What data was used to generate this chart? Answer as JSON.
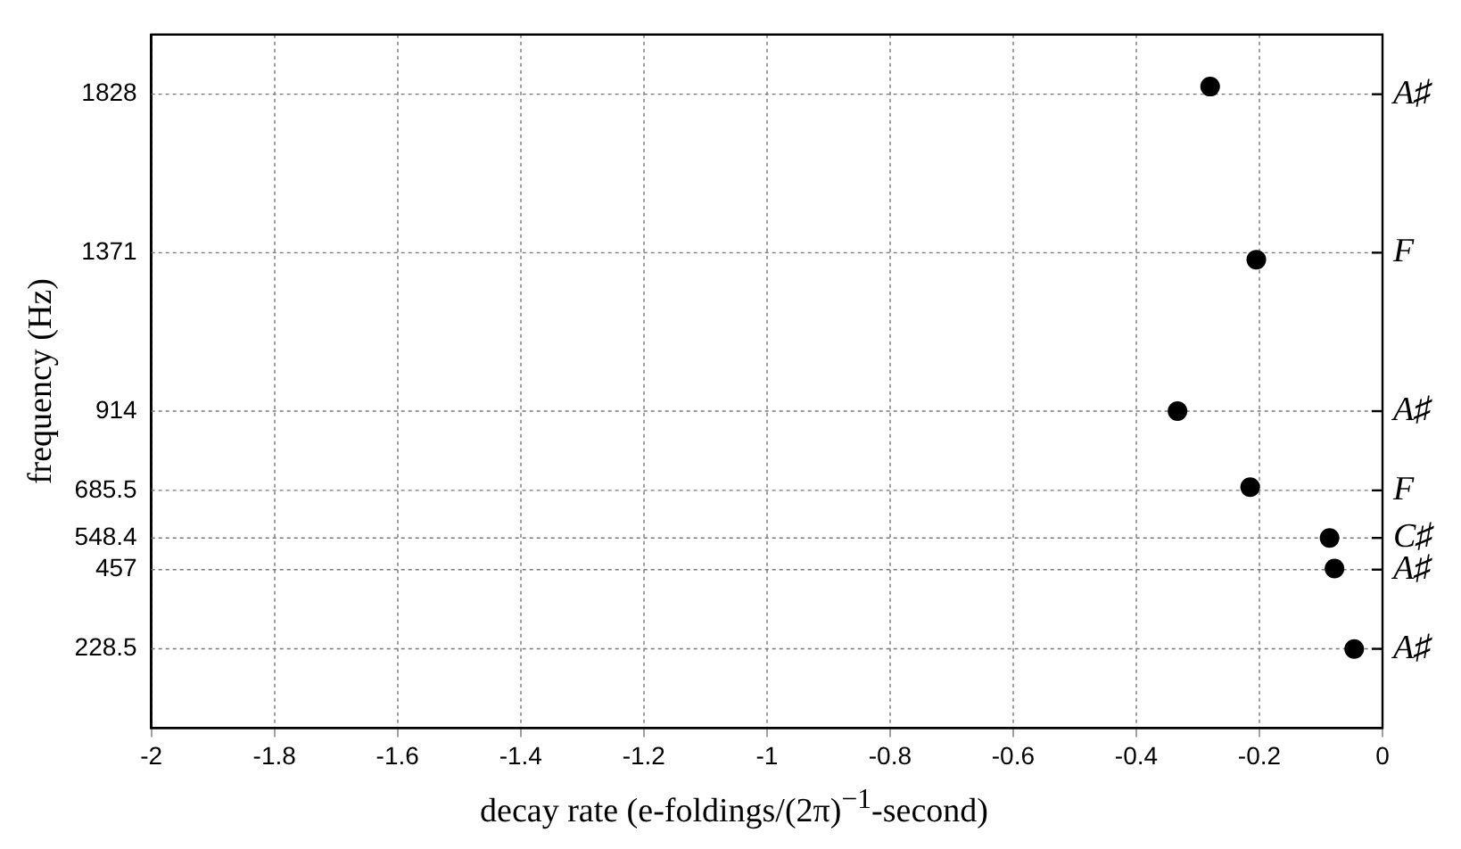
{
  "chart_data": {
    "type": "scatter",
    "xlabel": "decay rate (e-foldings/(2π)$^{−1}$-second)",
    "ylabel": "frequency (Hz)",
    "series": [
      {
        "color": "#000000",
        "x": [
          -0.28,
          -0.205,
          -0.333,
          -0.215,
          -0.086,
          -0.078,
          -0.046
        ],
        "values": [
          1850,
          1351,
          914,
          695,
          548,
          460,
          228
        ]
      }
    ],
    "xlim": [
      -2,
      0
    ],
    "xticks": [
      -2,
      -1.8,
      -1.6,
      -1.4,
      -1.2,
      -1,
      -0.8,
      -0.6,
      -0.4,
      -0.2,
      0
    ],
    "ylim": [
      0,
      2000
    ],
    "yticks": [
      228.5,
      457,
      548.4,
      685.5,
      914,
      1371,
      1828
    ],
    "ref_lines": [
      {
        "axis": "y",
        "value": 228.5,
        "label": "A♯",
        "color": "#777777",
        "line_style": "dashed"
      },
      {
        "axis": "y",
        "value": 457,
        "label": "A♯",
        "color": "#777777",
        "line_style": "dashed"
      },
      {
        "axis": "y",
        "value": 548.4,
        "label": "C♯",
        "color": "#777777",
        "line_style": "dashed"
      },
      {
        "axis": "y",
        "value": 685.5,
        "label": "F",
        "color": "#777777",
        "line_style": "dashed"
      },
      {
        "axis": "y",
        "value": 914,
        "label": "A♯",
        "color": "#777777",
        "line_style": "dashed"
      },
      {
        "axis": "y",
        "value": 1371,
        "label": "F",
        "color": "#777777",
        "line_style": "dashed"
      },
      {
        "axis": "y",
        "value": 1828,
        "label": "A♯",
        "color": "#777777",
        "line_style": "dashed"
      }
    ],
    "grid": "x",
    "legend": false,
    "marker": "circle"
  }
}
